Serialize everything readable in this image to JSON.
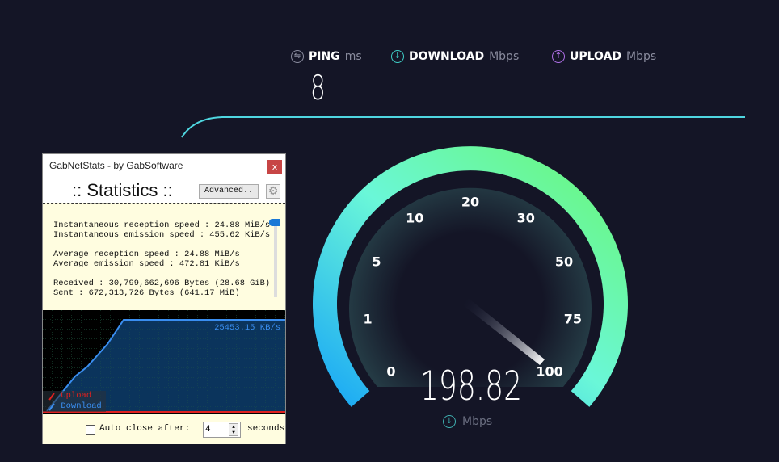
{
  "speedtest": {
    "ping": {
      "label": "PING",
      "unit": "ms",
      "value": "8",
      "icon": "ping-icon"
    },
    "download": {
      "label": "DOWNLOAD",
      "unit": "Mbps",
      "icon": "download-icon",
      "color": "#3fd0c8"
    },
    "upload": {
      "label": "UPLOAD",
      "unit": "Mbps",
      "icon": "upload-icon",
      "color": "#b070e8"
    },
    "gauge": {
      "ticks": [
        "0",
        "1",
        "5",
        "10",
        "20",
        "30",
        "50",
        "75",
        "100"
      ],
      "current_speed": "198.82",
      "unit": "Mbps",
      "colors": [
        "#1aa8f5",
        "#6af7d8",
        "#6af777"
      ]
    }
  },
  "window": {
    "title": "GabNetStats - by GabSoftware",
    "close_label": "x",
    "heading": ":: Statistics ::",
    "advanced_label": "Advanced..",
    "stats": {
      "inst_rx": "Instantaneous reception speed : 24.88 MiB/s",
      "inst_tx": "Instantaneous emission speed : 455.62 KiB/s",
      "avg_rx": "Average reception speed : 24.88 MiB/s",
      "avg_tx": "Average emission speed : 472.81 KiB/s",
      "received": "Received : 30,799,662,696 Bytes (28.68 GiB)",
      "sent": "Sent : 672,313,726 Bytes (641.17 MiB)"
    },
    "graph": {
      "current": "25453.15 KB/s",
      "legend_upload": "Upload",
      "legend_download": "Download",
      "upload_color": "#e02020",
      "download_color": "#3a8ef0"
    },
    "auto_close_label": "Auto close after:",
    "auto_close_value": "4",
    "seconds_label": "seconds"
  }
}
